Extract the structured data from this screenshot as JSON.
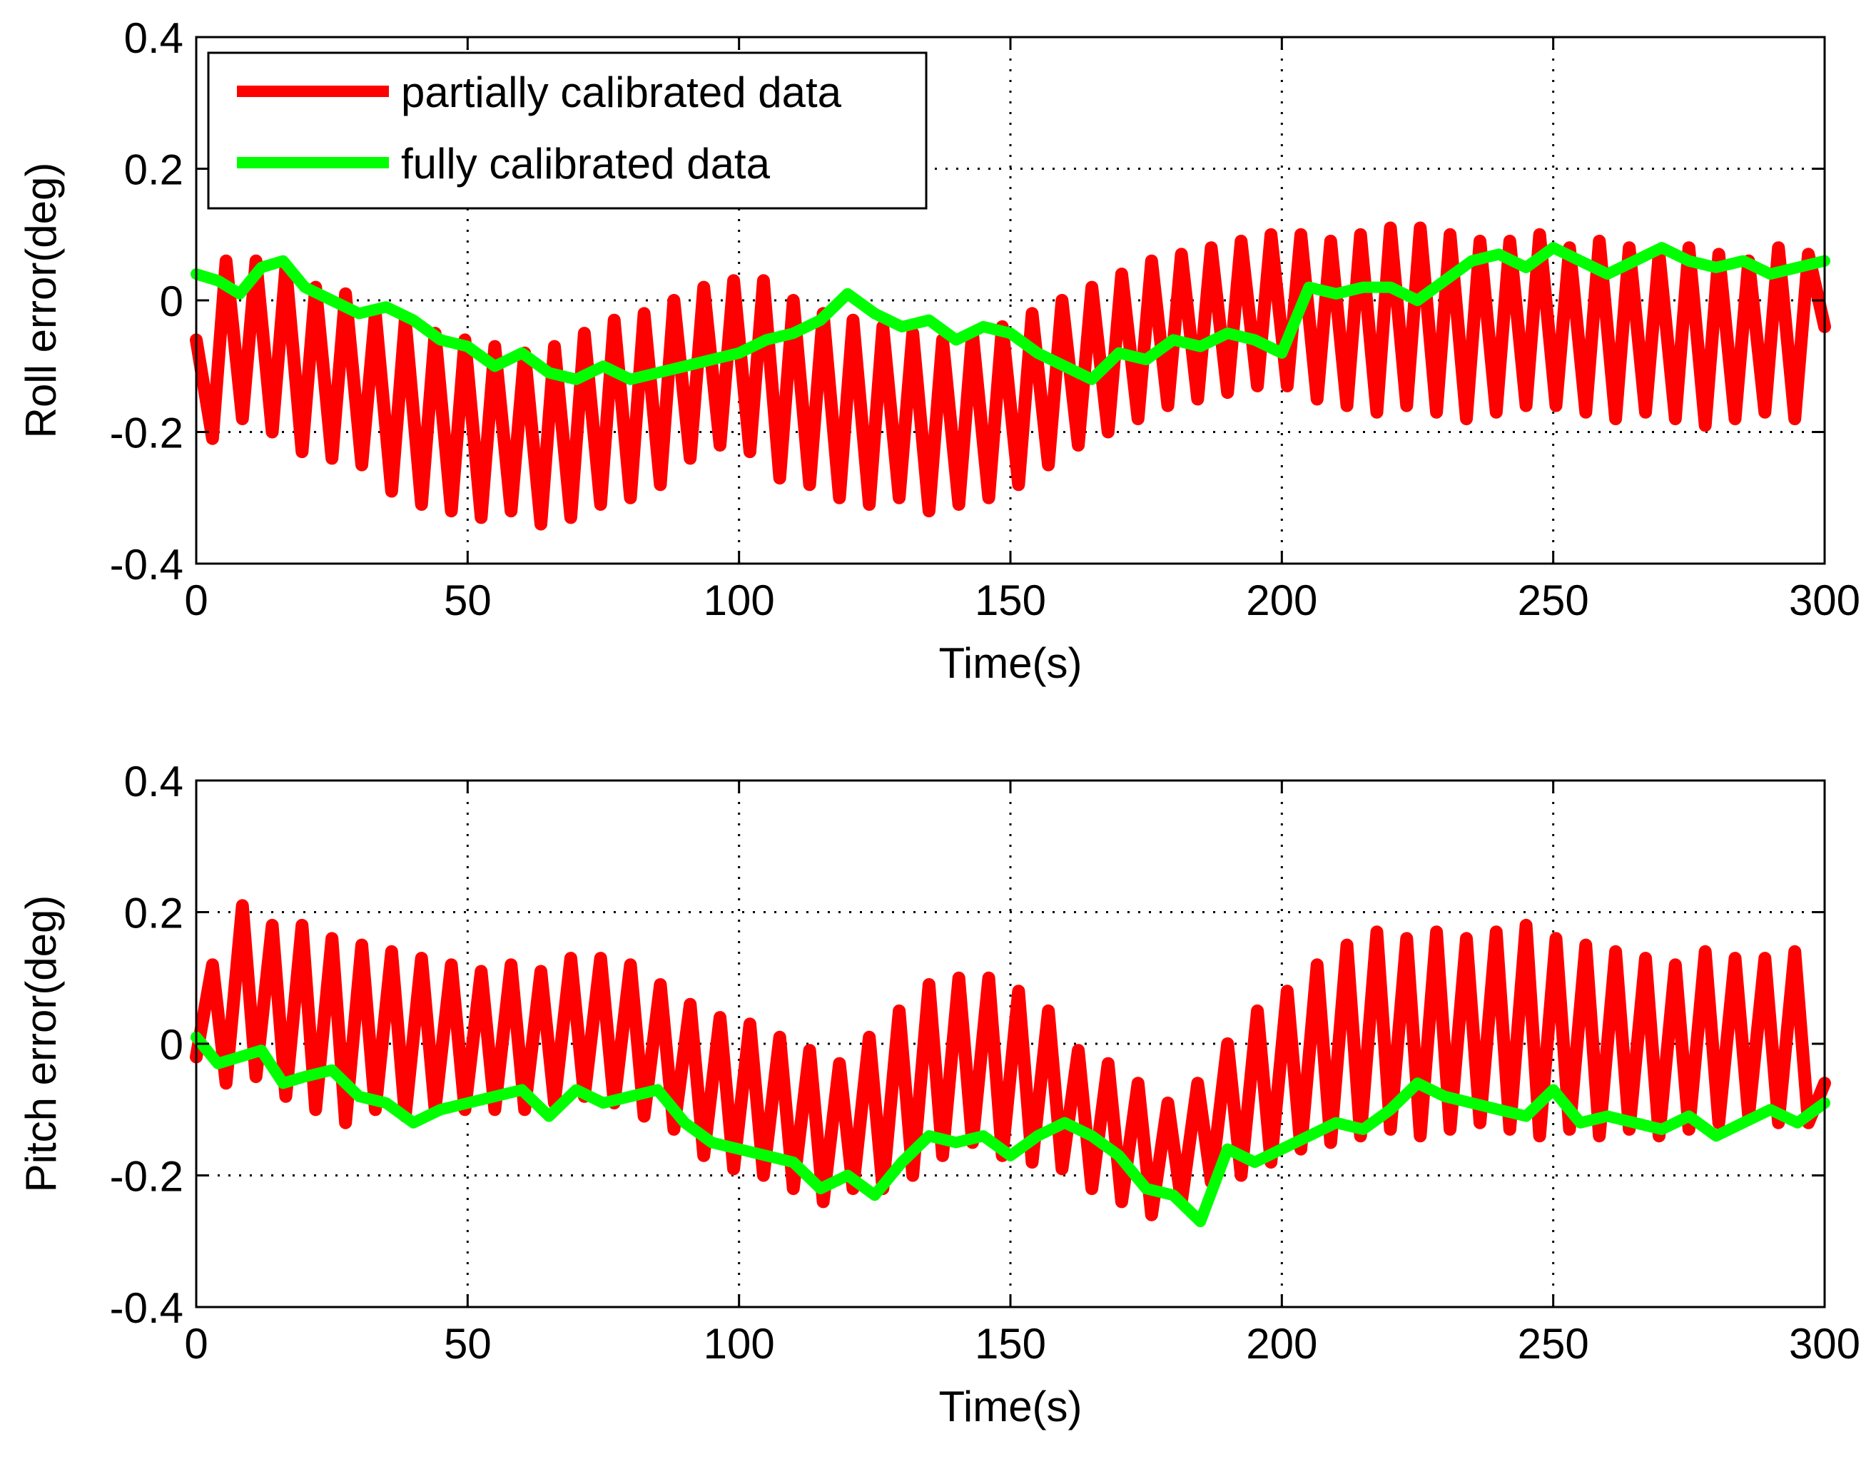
{
  "colors": {
    "partial": "#ff0000",
    "full": "#00ff00",
    "axis": "#000000",
    "grid": "#000000"
  },
  "chart_data": [
    {
      "type": "line",
      "xlabel": "Time(s)",
      "ylabel": "Roll error(deg)",
      "xlim": [
        0,
        300
      ],
      "ylim": [
        -0.4,
        0.4
      ],
      "xticks": [
        0,
        50,
        100,
        150,
        200,
        250,
        300
      ],
      "yticks": [
        -0.4,
        -0.2,
        0,
        0.2,
        0.4
      ],
      "xtick_labels": [
        "0",
        "50",
        "100",
        "150",
        "200",
        "250",
        "300"
      ],
      "ytick_labels": [
        "-0.4",
        "-0.2",
        "0",
        "0.2",
        "0.4"
      ],
      "grid": true,
      "legend": {
        "placement": "top-left",
        "entries": [
          "partially calibrated data",
          "fully calibrated data"
        ]
      },
      "series": [
        {
          "name": "partially calibrated data",
          "color": "#ff0000",
          "x": [
            0,
            3,
            5.5,
            8.5,
            11,
            14,
            16.5,
            19.5,
            22,
            25,
            27.5,
            30.5,
            33,
            36,
            38.5,
            41.5,
            44,
            47,
            49.5,
            52.5,
            55,
            58,
            60.5,
            63.5,
            66,
            69,
            71.5,
            74.5,
            77,
            80,
            82.5,
            85.5,
            88,
            91,
            93.5,
            96.5,
            99,
            102,
            104.5,
            107.5,
            110,
            113,
            115.5,
            118.5,
            121,
            124,
            126.5,
            129.5,
            132,
            135,
            137.5,
            140.5,
            143,
            146,
            148.5,
            151.5,
            154,
            157,
            159.5,
            162.5,
            165,
            168,
            170.5,
            173.5,
            176,
            179,
            181.5,
            184.5,
            187,
            190,
            192.5,
            195.5,
            198,
            201,
            203.5,
            206.5,
            209,
            212,
            214.5,
            217.5,
            220,
            223,
            225.5,
            228.5,
            231,
            234,
            236.5,
            239.5,
            242,
            245,
            247.5,
            250.5,
            253,
            256,
            258.5,
            261.5,
            264,
            267,
            269.5,
            272.5,
            275,
            278,
            280.5,
            283.5,
            286,
            289,
            291.5,
            294.5,
            297,
            300
          ],
          "y": [
            -0.06,
            -0.21,
            0.06,
            -0.18,
            0.06,
            -0.2,
            0.05,
            -0.23,
            0.02,
            -0.24,
            0.01,
            -0.25,
            -0.02,
            -0.29,
            -0.03,
            -0.31,
            -0.05,
            -0.32,
            -0.06,
            -0.33,
            -0.07,
            -0.32,
            -0.08,
            -0.34,
            -0.07,
            -0.33,
            -0.05,
            -0.31,
            -0.03,
            -0.3,
            -0.02,
            -0.28,
            0.0,
            -0.24,
            0.02,
            -0.22,
            0.03,
            -0.23,
            0.03,
            -0.27,
            0.0,
            -0.28,
            -0.02,
            -0.3,
            -0.03,
            -0.31,
            -0.04,
            -0.3,
            -0.05,
            -0.32,
            -0.06,
            -0.31,
            -0.05,
            -0.3,
            -0.04,
            -0.28,
            -0.02,
            -0.25,
            0.0,
            -0.22,
            0.02,
            -0.2,
            0.04,
            -0.18,
            0.06,
            -0.16,
            0.07,
            -0.15,
            0.08,
            -0.14,
            0.09,
            -0.13,
            0.1,
            -0.13,
            0.1,
            -0.15,
            0.09,
            -0.16,
            0.1,
            -0.17,
            0.11,
            -0.16,
            0.11,
            -0.17,
            0.1,
            -0.18,
            0.09,
            -0.17,
            0.09,
            -0.16,
            0.1,
            -0.16,
            0.08,
            -0.17,
            0.09,
            -0.18,
            0.08,
            -0.17,
            0.07,
            -0.18,
            0.08,
            -0.19,
            0.07,
            -0.18,
            0.06,
            -0.17,
            0.08,
            -0.18,
            0.07,
            -0.04
          ]
        },
        {
          "name": "fully calibrated data",
          "color": "#00ff00",
          "x": [
            0,
            4,
            8,
            12,
            16,
            20,
            25,
            30,
            35,
            40,
            45,
            50,
            55,
            60,
            65,
            70,
            75,
            80,
            85,
            90,
            95,
            100,
            105,
            110,
            115,
            120,
            125,
            130,
            135,
            140,
            145,
            150,
            155,
            160,
            165,
            170,
            175,
            180,
            185,
            190,
            195,
            200,
            205,
            210,
            215,
            220,
            225,
            230,
            235,
            240,
            245,
            250,
            255,
            260,
            265,
            270,
            275,
            280,
            285,
            290,
            295,
            300
          ],
          "y": [
            0.04,
            0.03,
            0.01,
            0.05,
            0.06,
            0.02,
            0.0,
            -0.02,
            -0.01,
            -0.03,
            -0.06,
            -0.07,
            -0.1,
            -0.08,
            -0.11,
            -0.12,
            -0.1,
            -0.12,
            -0.11,
            -0.1,
            -0.09,
            -0.08,
            -0.06,
            -0.05,
            -0.03,
            0.01,
            -0.02,
            -0.04,
            -0.03,
            -0.06,
            -0.04,
            -0.05,
            -0.08,
            -0.1,
            -0.12,
            -0.08,
            -0.09,
            -0.06,
            -0.07,
            -0.05,
            -0.06,
            -0.08,
            0.02,
            0.01,
            0.02,
            0.02,
            0.0,
            0.03,
            0.06,
            0.07,
            0.05,
            0.08,
            0.06,
            0.04,
            0.06,
            0.08,
            0.06,
            0.05,
            0.06,
            0.04,
            0.05,
            0.06
          ]
        }
      ]
    },
    {
      "type": "line",
      "xlabel": "Time(s)",
      "ylabel": "Pitch error(deg)",
      "xlim": [
        0,
        300
      ],
      "ylim": [
        -0.4,
        0.4
      ],
      "xticks": [
        0,
        50,
        100,
        150,
        200,
        250,
        300
      ],
      "yticks": [
        -0.4,
        -0.2,
        0,
        0.2,
        0.4
      ],
      "xtick_labels": [
        "0",
        "50",
        "100",
        "150",
        "200",
        "250",
        "300"
      ],
      "ytick_labels": [
        "-0.4",
        "-0.2",
        "0",
        "0.2",
        "0.4"
      ],
      "grid": true,
      "series": [
        {
          "name": "partially calibrated data",
          "color": "#ff0000",
          "x": [
            0,
            3,
            5.5,
            8.5,
            11,
            14,
            16.5,
            19.5,
            22,
            25,
            27.5,
            30.5,
            33,
            36,
            38.5,
            41.5,
            44,
            47,
            49.5,
            52.5,
            55,
            58,
            60.5,
            63.5,
            66,
            69,
            71.5,
            74.5,
            77,
            80,
            82.5,
            85.5,
            88,
            91,
            93.5,
            96.5,
            99,
            102,
            104.5,
            107.5,
            110,
            113,
            115.5,
            118.5,
            121,
            124,
            126.5,
            129.5,
            132,
            135,
            137.5,
            140.5,
            143,
            146,
            148.5,
            151.5,
            154,
            157,
            159.5,
            162.5,
            165,
            168,
            170.5,
            173.5,
            176,
            179,
            181.5,
            184.5,
            187,
            190,
            192.5,
            195.5,
            198,
            201,
            203.5,
            206.5,
            209,
            212,
            214.5,
            217.5,
            220,
            223,
            225.5,
            228.5,
            231,
            234,
            236.5,
            239.5,
            242,
            245,
            247.5,
            250.5,
            253,
            256,
            258.5,
            261.5,
            264,
            267,
            269.5,
            272.5,
            275,
            278,
            280.5,
            283.5,
            286,
            289,
            291.5,
            294.5,
            297,
            300
          ],
          "y": [
            -0.02,
            0.12,
            -0.06,
            0.21,
            -0.05,
            0.18,
            -0.08,
            0.18,
            -0.1,
            0.16,
            -0.12,
            0.15,
            -0.1,
            0.14,
            -0.11,
            0.13,
            -0.1,
            0.12,
            -0.1,
            0.11,
            -0.1,
            0.12,
            -0.1,
            0.11,
            -0.09,
            0.13,
            -0.08,
            0.13,
            -0.09,
            0.12,
            -0.11,
            0.09,
            -0.13,
            0.06,
            -0.17,
            0.04,
            -0.19,
            0.03,
            -0.2,
            0.01,
            -0.22,
            -0.01,
            -0.24,
            -0.03,
            -0.22,
            0.01,
            -0.22,
            0.05,
            -0.2,
            0.09,
            -0.17,
            0.1,
            -0.15,
            0.1,
            -0.17,
            0.08,
            -0.18,
            0.05,
            -0.19,
            -0.01,
            -0.22,
            -0.03,
            -0.24,
            -0.06,
            -0.26,
            -0.09,
            -0.24,
            -0.06,
            -0.21,
            0.0,
            -0.2,
            0.05,
            -0.18,
            0.08,
            -0.16,
            0.12,
            -0.15,
            0.15,
            -0.14,
            0.17,
            -0.13,
            0.16,
            -0.14,
            0.17,
            -0.13,
            0.16,
            -0.12,
            0.17,
            -0.13,
            0.18,
            -0.14,
            0.16,
            -0.13,
            0.15,
            -0.14,
            0.14,
            -0.13,
            0.13,
            -0.14,
            0.12,
            -0.13,
            0.14,
            -0.12,
            0.13,
            -0.11,
            0.13,
            -0.12,
            0.14,
            -0.12,
            -0.06
          ]
        },
        {
          "name": "fully calibrated data",
          "color": "#00ff00",
          "x": [
            0,
            4,
            8,
            12,
            16,
            20,
            25,
            30,
            35,
            40,
            45,
            50,
            55,
            60,
            65,
            70,
            75,
            80,
            85,
            90,
            95,
            100,
            105,
            110,
            115,
            120,
            125,
            130,
            135,
            140,
            145,
            150,
            155,
            160,
            165,
            170,
            175,
            180,
            185,
            190,
            195,
            200,
            205,
            210,
            215,
            220,
            225,
            230,
            235,
            240,
            245,
            250,
            255,
            260,
            265,
            270,
            275,
            280,
            285,
            290,
            295,
            300
          ],
          "y": [
            0.01,
            -0.03,
            -0.02,
            -0.01,
            -0.06,
            -0.05,
            -0.04,
            -0.08,
            -0.09,
            -0.12,
            -0.1,
            -0.09,
            -0.08,
            -0.07,
            -0.11,
            -0.07,
            -0.09,
            -0.08,
            -0.07,
            -0.12,
            -0.15,
            -0.16,
            -0.17,
            -0.18,
            -0.22,
            -0.2,
            -0.23,
            -0.18,
            -0.14,
            -0.15,
            -0.14,
            -0.17,
            -0.14,
            -0.12,
            -0.14,
            -0.17,
            -0.22,
            -0.23,
            -0.27,
            -0.16,
            -0.18,
            -0.16,
            -0.14,
            -0.12,
            -0.13,
            -0.1,
            -0.06,
            -0.08,
            -0.09,
            -0.1,
            -0.11,
            -0.07,
            -0.12,
            -0.11,
            -0.12,
            -0.13,
            -0.11,
            -0.14,
            -0.12,
            -0.1,
            -0.12,
            -0.09
          ]
        }
      ]
    }
  ]
}
